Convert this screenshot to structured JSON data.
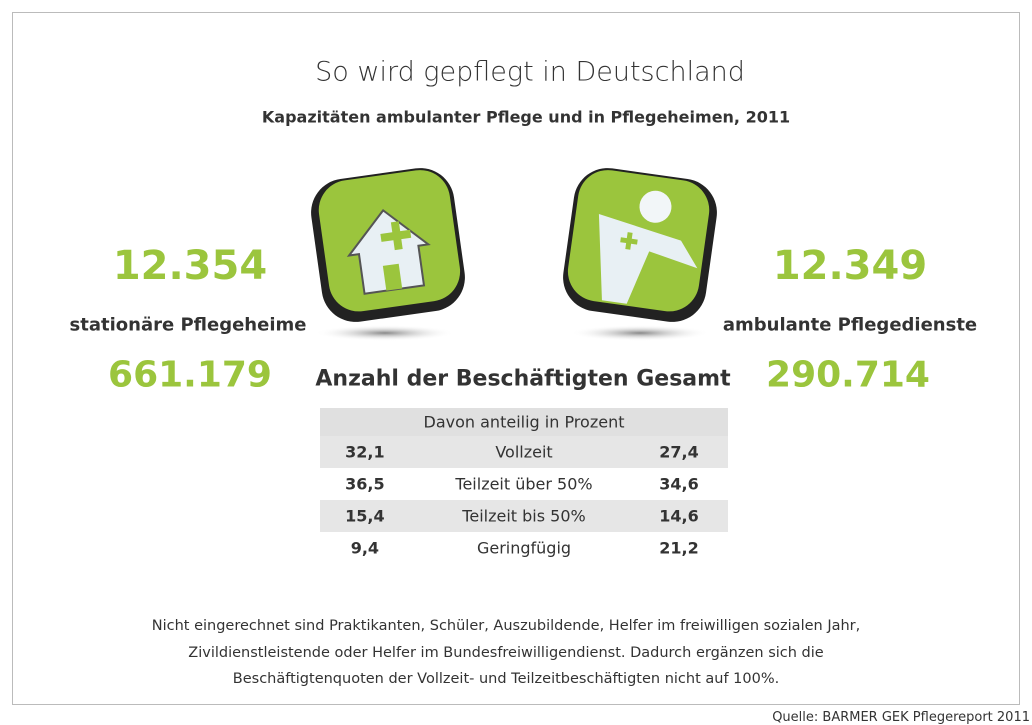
{
  "title": "So wird gepflegt in Deutschland",
  "subtitle": "Kapazitäten ambulanter Pflege und in Pflegeheimen, 2011",
  "left": {
    "count": "12.354",
    "label": "stationäre Pflegeheime",
    "employees": "661.179"
  },
  "right": {
    "count": "12.349",
    "label": "ambulante Pflegedienste",
    "employees": "290.714"
  },
  "center_heading": "Anzahl der Beschäftigten Gesamt",
  "table": {
    "header": "Davon anteilig in Prozent",
    "rows": [
      [
        "32,1",
        "Vollzeit",
        "27,4"
      ],
      [
        "36,5",
        "Teilzeit über 50%",
        "34,6"
      ],
      [
        "15,4",
        "Teilzeit bis 50%",
        "14,6"
      ],
      [
        "9,4",
        "Geringfügig",
        "21,2"
      ]
    ]
  },
  "note": [
    "Nicht eingerechnet sind Praktikanten, Schüler, Auszubildende, Helfer im freiwilligen sozialen Jahr,",
    "Zivildienstleistende oder Helfer im Bundesfreiwilligendienst. Dadurch ergänzen sich die",
    "Beschäftigtenquoten der Vollzeit- und Teilzeitbeschäftigten nicht auf 100%."
  ],
  "source": "Quelle: BARMER GEK Pflegereport 2011"
}
